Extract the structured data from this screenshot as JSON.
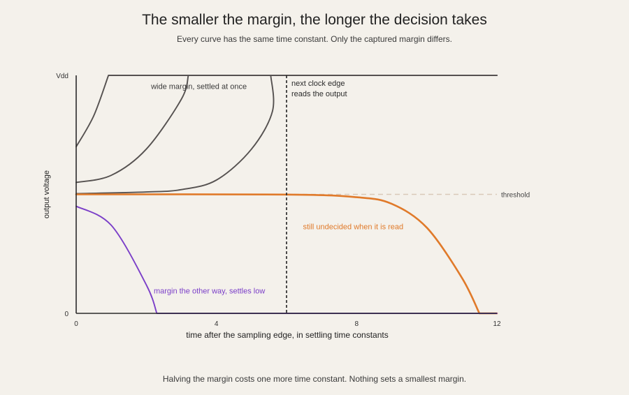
{
  "title": "The smaller the margin, the longer the decision takes",
  "subtitle": "Every curve has the same time constant. Only the captured margin differs.",
  "footer": "Halving the margin costs one more time constant. Nothing sets a smallest margin.",
  "colors": {
    "background": "#f4f1eb",
    "axis": "#2b2b2b",
    "gray_curve": "#555150",
    "highlight": "#e07a2a",
    "low": "#7b3fc8",
    "threshold_line": "#d9c9b8"
  },
  "chart_data": {
    "type": "line",
    "xlabel": "time after the sampling edge, in settling time constants",
    "ylabel": "output voltage",
    "xlim": [
      0,
      12
    ],
    "x_ticks": [
      0,
      4,
      8,
      12
    ],
    "y_tick_labels": [
      "0",
      "Vdd"
    ],
    "threshold": {
      "label": "threshold",
      "value": 0.5
    },
    "clock_edge": {
      "x": 6,
      "label_lines": [
        "next clock edge",
        "reads the output"
      ]
    },
    "series": [
      {
        "id": "wide-margin",
        "start_delta": 0.2,
        "direction": "high",
        "color": "#555150",
        "points": [
          [
            0,
            0.7
          ],
          [
            0.5,
            0.83
          ],
          [
            0.92,
            1.0
          ],
          [
            12,
            1.0
          ]
        ]
      },
      {
        "id": "medium-margin",
        "start_delta": 0.05,
        "direction": "high",
        "color": "#555150",
        "points": [
          [
            0,
            0.55
          ],
          [
            1,
            0.58
          ],
          [
            2,
            0.69
          ],
          [
            3,
            0.9
          ],
          [
            3.2,
            1.0
          ],
          [
            12,
            1.0
          ]
        ]
      },
      {
        "id": "small-margin",
        "start_delta": 0.003,
        "direction": "high",
        "color": "#555150",
        "points": [
          [
            0,
            0.503
          ],
          [
            2,
            0.51
          ],
          [
            3,
            0.52
          ],
          [
            4,
            0.56
          ],
          [
            5,
            0.69
          ],
          [
            5.6,
            0.85
          ],
          [
            5.55,
            1.0
          ],
          [
            12,
            1.0
          ]
        ]
      },
      {
        "id": "tiny-margin",
        "start_delta": 5e-06,
        "direction": "low",
        "color": "#e07a2a",
        "points": [
          [
            0,
            0.5
          ],
          [
            6,
            0.499
          ],
          [
            8,
            0.488
          ],
          [
            9,
            0.46
          ],
          [
            10,
            0.36
          ],
          [
            11,
            0.15
          ],
          [
            11.5,
            0.0
          ],
          [
            12,
            0.0
          ]
        ]
      },
      {
        "id": "other-way",
        "start_delta": 0.045,
        "direction": "low",
        "color": "#7b3fc8",
        "points": [
          [
            0,
            0.45
          ],
          [
            1,
            0.37
          ],
          [
            2,
            0.12
          ],
          [
            2.3,
            0.0
          ],
          [
            12,
            0.0
          ]
        ]
      }
    ],
    "annotations": [
      {
        "id": "wide-label",
        "text": "wide margin, settled at once",
        "x": 3.5,
        "y": 0.955,
        "color": "#3a3a3a"
      },
      {
        "id": "undecided-label",
        "text": "still undecided when it is read",
        "x": 7.9,
        "y": 0.365,
        "color": "#e07a2a"
      },
      {
        "id": "low-label",
        "text": "margin the other way, settles low",
        "x": 3.8,
        "y": 0.095,
        "color": "#7b3fc8"
      }
    ]
  }
}
